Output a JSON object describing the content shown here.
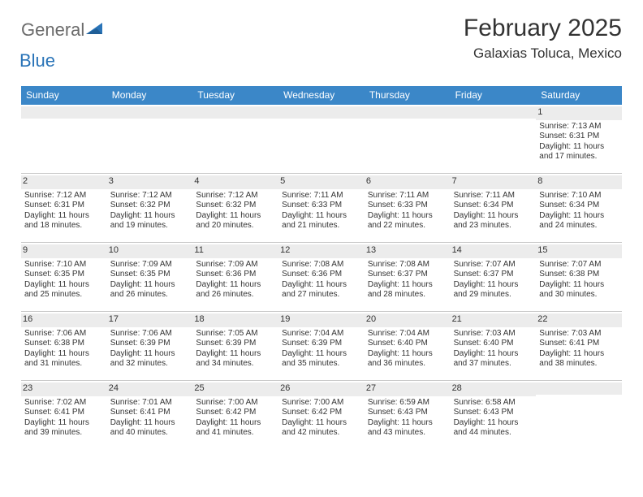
{
  "brand": {
    "part1": "General",
    "part2": "Blue"
  },
  "title": "February 2025",
  "location": "Galaxias Toluca, Mexico",
  "colors": {
    "header_bg": "#3b87c8",
    "header_text": "#ffffff",
    "daynum_bg": "#ececec",
    "divider": "#c9c9c9",
    "text": "#333333",
    "logo_gray": "#6b6b6b",
    "logo_blue": "#2a74b8",
    "page_bg": "#ffffff"
  },
  "weekdays": [
    "Sunday",
    "Monday",
    "Tuesday",
    "Wednesday",
    "Thursday",
    "Friday",
    "Saturday"
  ],
  "weeks": [
    [
      {
        "empty": true
      },
      {
        "empty": true
      },
      {
        "empty": true
      },
      {
        "empty": true
      },
      {
        "empty": true
      },
      {
        "empty": true
      },
      {
        "n": "1",
        "sr": "Sunrise: 7:13 AM",
        "ss": "Sunset: 6:31 PM",
        "d1": "Daylight: 11 hours",
        "d2": "and 17 minutes."
      }
    ],
    [
      {
        "n": "2",
        "sr": "Sunrise: 7:12 AM",
        "ss": "Sunset: 6:31 PM",
        "d1": "Daylight: 11 hours",
        "d2": "and 18 minutes."
      },
      {
        "n": "3",
        "sr": "Sunrise: 7:12 AM",
        "ss": "Sunset: 6:32 PM",
        "d1": "Daylight: 11 hours",
        "d2": "and 19 minutes."
      },
      {
        "n": "4",
        "sr": "Sunrise: 7:12 AM",
        "ss": "Sunset: 6:32 PM",
        "d1": "Daylight: 11 hours",
        "d2": "and 20 minutes."
      },
      {
        "n": "5",
        "sr": "Sunrise: 7:11 AM",
        "ss": "Sunset: 6:33 PM",
        "d1": "Daylight: 11 hours",
        "d2": "and 21 minutes."
      },
      {
        "n": "6",
        "sr": "Sunrise: 7:11 AM",
        "ss": "Sunset: 6:33 PM",
        "d1": "Daylight: 11 hours",
        "d2": "and 22 minutes."
      },
      {
        "n": "7",
        "sr": "Sunrise: 7:11 AM",
        "ss": "Sunset: 6:34 PM",
        "d1": "Daylight: 11 hours",
        "d2": "and 23 minutes."
      },
      {
        "n": "8",
        "sr": "Sunrise: 7:10 AM",
        "ss": "Sunset: 6:34 PM",
        "d1": "Daylight: 11 hours",
        "d2": "and 24 minutes."
      }
    ],
    [
      {
        "n": "9",
        "sr": "Sunrise: 7:10 AM",
        "ss": "Sunset: 6:35 PM",
        "d1": "Daylight: 11 hours",
        "d2": "and 25 minutes."
      },
      {
        "n": "10",
        "sr": "Sunrise: 7:09 AM",
        "ss": "Sunset: 6:35 PM",
        "d1": "Daylight: 11 hours",
        "d2": "and 26 minutes."
      },
      {
        "n": "11",
        "sr": "Sunrise: 7:09 AM",
        "ss": "Sunset: 6:36 PM",
        "d1": "Daylight: 11 hours",
        "d2": "and 26 minutes."
      },
      {
        "n": "12",
        "sr": "Sunrise: 7:08 AM",
        "ss": "Sunset: 6:36 PM",
        "d1": "Daylight: 11 hours",
        "d2": "and 27 minutes."
      },
      {
        "n": "13",
        "sr": "Sunrise: 7:08 AM",
        "ss": "Sunset: 6:37 PM",
        "d1": "Daylight: 11 hours",
        "d2": "and 28 minutes."
      },
      {
        "n": "14",
        "sr": "Sunrise: 7:07 AM",
        "ss": "Sunset: 6:37 PM",
        "d1": "Daylight: 11 hours",
        "d2": "and 29 minutes."
      },
      {
        "n": "15",
        "sr": "Sunrise: 7:07 AM",
        "ss": "Sunset: 6:38 PM",
        "d1": "Daylight: 11 hours",
        "d2": "and 30 minutes."
      }
    ],
    [
      {
        "n": "16",
        "sr": "Sunrise: 7:06 AM",
        "ss": "Sunset: 6:38 PM",
        "d1": "Daylight: 11 hours",
        "d2": "and 31 minutes."
      },
      {
        "n": "17",
        "sr": "Sunrise: 7:06 AM",
        "ss": "Sunset: 6:39 PM",
        "d1": "Daylight: 11 hours",
        "d2": "and 32 minutes."
      },
      {
        "n": "18",
        "sr": "Sunrise: 7:05 AM",
        "ss": "Sunset: 6:39 PM",
        "d1": "Daylight: 11 hours",
        "d2": "and 34 minutes."
      },
      {
        "n": "19",
        "sr": "Sunrise: 7:04 AM",
        "ss": "Sunset: 6:39 PM",
        "d1": "Daylight: 11 hours",
        "d2": "and 35 minutes."
      },
      {
        "n": "20",
        "sr": "Sunrise: 7:04 AM",
        "ss": "Sunset: 6:40 PM",
        "d1": "Daylight: 11 hours",
        "d2": "and 36 minutes."
      },
      {
        "n": "21",
        "sr": "Sunrise: 7:03 AM",
        "ss": "Sunset: 6:40 PM",
        "d1": "Daylight: 11 hours",
        "d2": "and 37 minutes."
      },
      {
        "n": "22",
        "sr": "Sunrise: 7:03 AM",
        "ss": "Sunset: 6:41 PM",
        "d1": "Daylight: 11 hours",
        "d2": "and 38 minutes."
      }
    ],
    [
      {
        "n": "23",
        "sr": "Sunrise: 7:02 AM",
        "ss": "Sunset: 6:41 PM",
        "d1": "Daylight: 11 hours",
        "d2": "and 39 minutes."
      },
      {
        "n": "24",
        "sr": "Sunrise: 7:01 AM",
        "ss": "Sunset: 6:41 PM",
        "d1": "Daylight: 11 hours",
        "d2": "and 40 minutes."
      },
      {
        "n": "25",
        "sr": "Sunrise: 7:00 AM",
        "ss": "Sunset: 6:42 PM",
        "d1": "Daylight: 11 hours",
        "d2": "and 41 minutes."
      },
      {
        "n": "26",
        "sr": "Sunrise: 7:00 AM",
        "ss": "Sunset: 6:42 PM",
        "d1": "Daylight: 11 hours",
        "d2": "and 42 minutes."
      },
      {
        "n": "27",
        "sr": "Sunrise: 6:59 AM",
        "ss": "Sunset: 6:43 PM",
        "d1": "Daylight: 11 hours",
        "d2": "and 43 minutes."
      },
      {
        "n": "28",
        "sr": "Sunrise: 6:58 AM",
        "ss": "Sunset: 6:43 PM",
        "d1": "Daylight: 11 hours",
        "d2": "and 44 minutes."
      },
      {
        "empty": true
      }
    ]
  ]
}
